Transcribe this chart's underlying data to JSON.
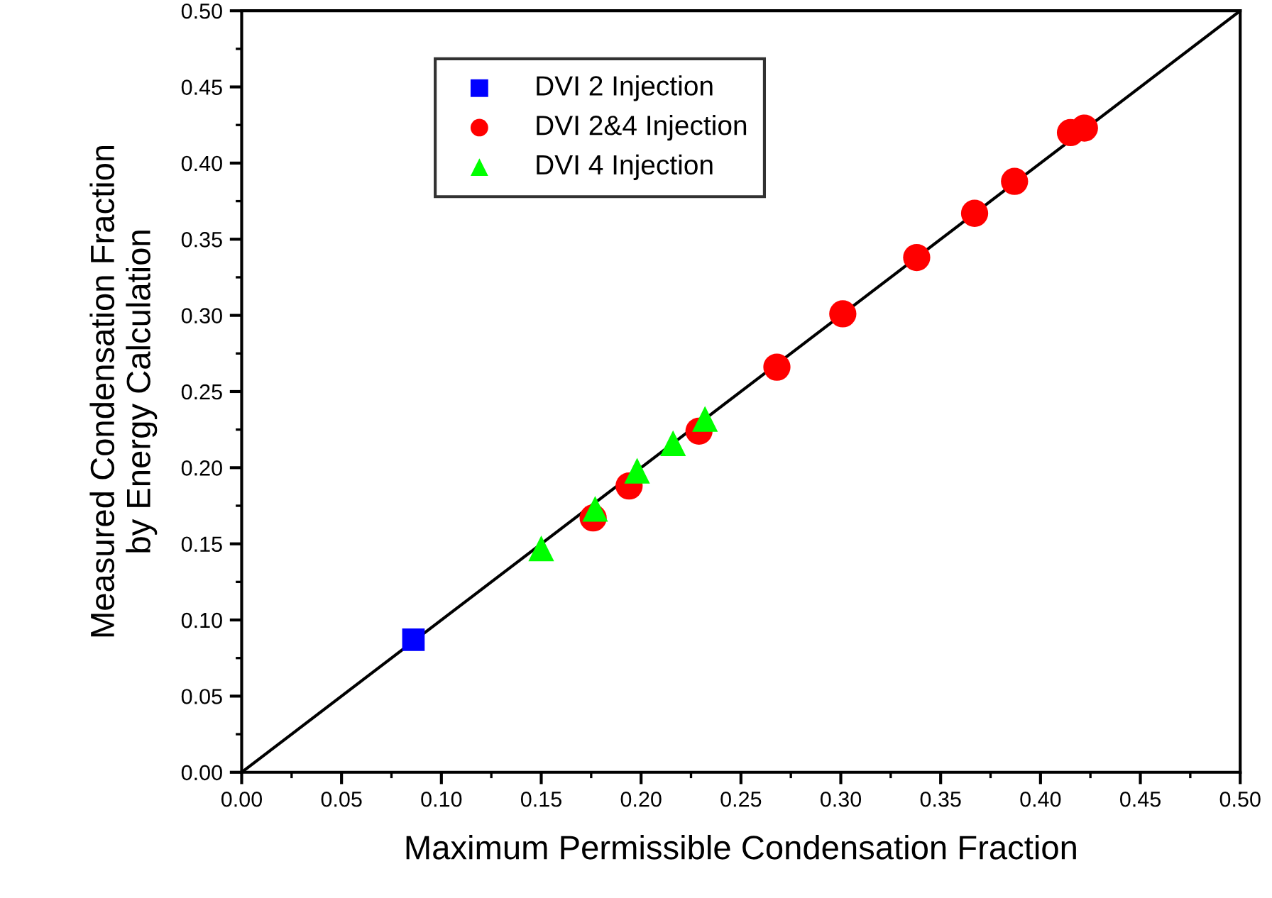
{
  "chart_data": {
    "type": "scatter",
    "xlabel": "Maximum Permissible Condensation Fraction",
    "ylabel": "Measured Condensation Fraction\nby Energy Calculation",
    "xlim": [
      0,
      0.5
    ],
    "ylim": [
      0,
      0.5
    ],
    "xticks": [
      {
        "value": 0,
        "label": "0.00"
      },
      {
        "value": 0.05,
        "label": "0.05"
      },
      {
        "value": 0.1,
        "label": "0.10"
      },
      {
        "value": 0.15,
        "label": "0.15"
      },
      {
        "value": 0.2,
        "label": "0.20"
      },
      {
        "value": 0.25,
        "label": "0.25"
      },
      {
        "value": 0.3,
        "label": "0.30"
      },
      {
        "value": 0.35,
        "label": "0.35"
      },
      {
        "value": 0.4,
        "label": "0.40"
      },
      {
        "value": 0.45,
        "label": "0.45"
      },
      {
        "value": 0.5,
        "label": "0.50"
      }
    ],
    "yticks": [
      {
        "value": 0,
        "label": "0.00"
      },
      {
        "value": 0.05,
        "label": "0.05"
      },
      {
        "value": 0.1,
        "label": "0.10"
      },
      {
        "value": 0.15,
        "label": "0.15"
      },
      {
        "value": 0.2,
        "label": "0.20"
      },
      {
        "value": 0.25,
        "label": "0.25"
      },
      {
        "value": 0.3,
        "label": "0.30"
      },
      {
        "value": 0.35,
        "label": "0.35"
      },
      {
        "value": 0.4,
        "label": "0.40"
      },
      {
        "value": 0.45,
        "label": "0.45"
      },
      {
        "value": 0.5,
        "label": "0.50"
      }
    ],
    "grid": false,
    "legend": "top left",
    "series": [
      {
        "type": "line",
        "color": "#000000",
        "marker": "none",
        "line_style": "solid",
        "x": [
          0,
          0.5
        ],
        "values": [
          0,
          0.5
        ]
      },
      {
        "name": "DVI 2 Injection",
        "color": "#0000ff",
        "marker": "square",
        "x": [
          0.086
        ],
        "values": [
          0.087
        ]
      },
      {
        "name": "DVI 2&4 Injection",
        "color": "#ff0000",
        "marker": "circle",
        "x": [
          0.176,
          0.194,
          0.229,
          0.268,
          0.301,
          0.338,
          0.367,
          0.387,
          0.415,
          0.422
        ],
        "values": [
          0.167,
          0.188,
          0.224,
          0.266,
          0.301,
          0.338,
          0.367,
          0.388,
          0.42,
          0.423
        ]
      },
      {
        "name": "DVI 4 Injection",
        "color": "#00ff00",
        "marker": "triangle",
        "x": [
          0.15,
          0.177,
          0.198,
          0.216,
          0.232
        ],
        "values": [
          0.147,
          0.173,
          0.198,
          0.216,
          0.232
        ]
      }
    ]
  }
}
